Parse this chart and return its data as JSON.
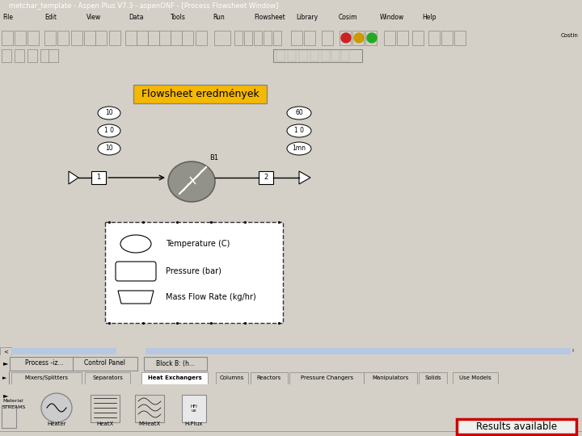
{
  "title_bar_text": "metchar_template - Aspen Plus V7.3 - aspenONF - [Process Flowsheet Window]",
  "title_bar_color": "#0055cc",
  "title_bar_text_color": "#ffffff",
  "window_bg": "#d4d0c8",
  "canvas_bg": "#f0f0ec",
  "flowsheet_label": "Flowsheet eredmények",
  "flowsheet_label_bg": "#f5b800",
  "flowsheet_label_color": "#000000",
  "results_text": "Results available",
  "results_border_color": "#cc0000",
  "results_bg": "#f0f0ec",
  "legend_items": [
    "Temperature (C)",
    "Pressure (bar)",
    "Mass Flow Rate (kg/hr)"
  ],
  "stream1_values": [
    "10",
    "1 0",
    "10"
  ],
  "stream2_values": [
    "60",
    "1 0",
    "1mn"
  ],
  "status_tabs": [
    "Process -iz...",
    "Control Panel",
    "Block B: (h..."
  ],
  "bottom_tabs": [
    "Mixers/Splitters",
    "Separators",
    "Heat Exchangers",
    "Columns",
    "Reactors",
    "Pressure Changers",
    "Manipulators",
    "Solids",
    "Use Models"
  ],
  "bottom_highlight_tab": "Heat Exchangers",
  "heater_color": "#888880",
  "pipe_color": "#000000"
}
